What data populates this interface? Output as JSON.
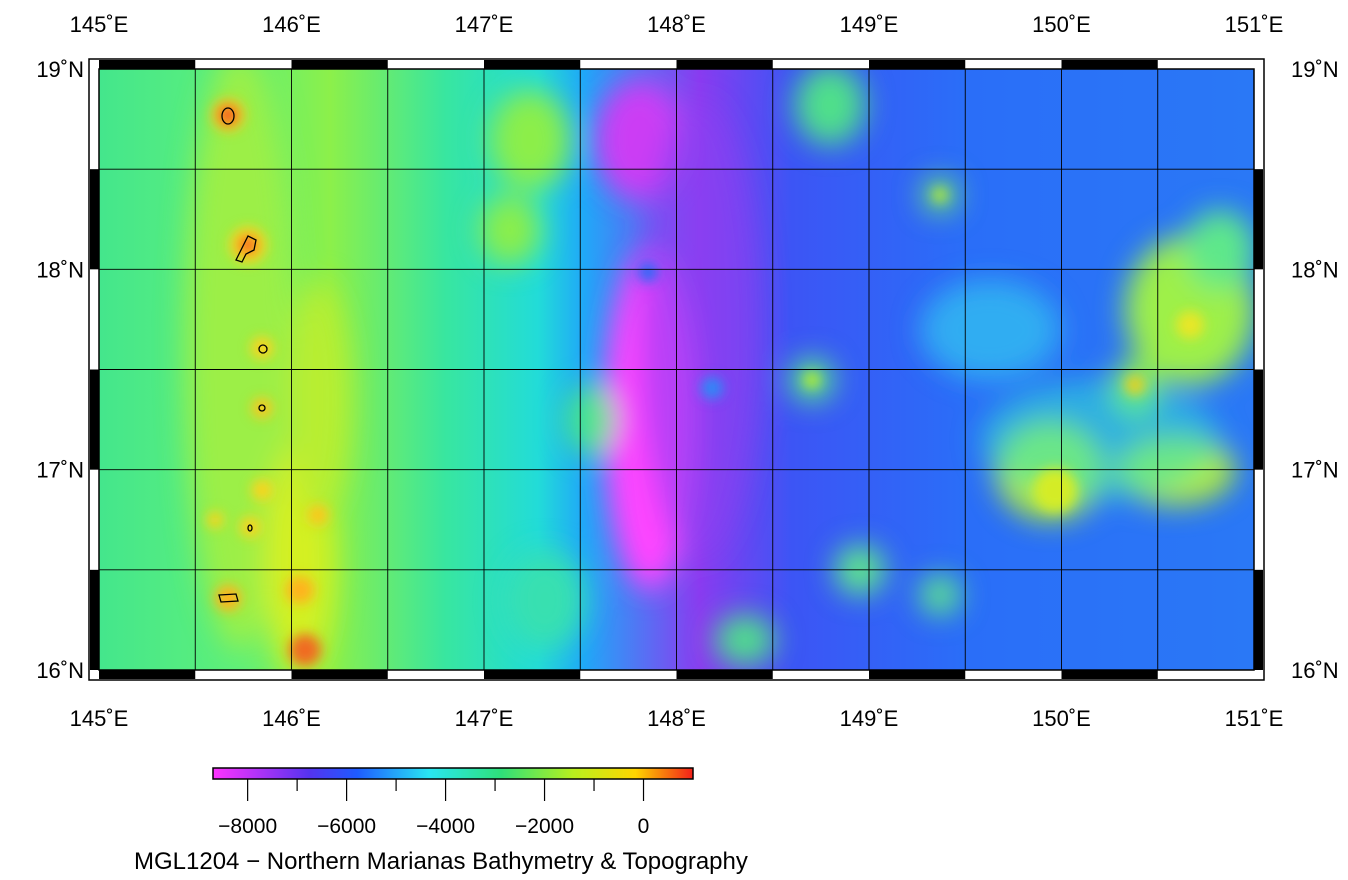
{
  "map": {
    "lon_range": [
      145,
      151
    ],
    "lat_range": [
      16,
      19
    ],
    "lon_labels": [
      "145˚E",
      "146˚E",
      "147˚E",
      "148˚E",
      "149˚E",
      "150˚E",
      "151˚E"
    ],
    "lat_labels": [
      "16˚N",
      "17˚N",
      "18˚N",
      "19˚N"
    ],
    "grid_step_degrees": 0.5,
    "colormap": [
      "#ff33ff",
      "#5533ee",
      "#1e5bff",
      "#29e6f2",
      "#2ee07a",
      "#b8f01e",
      "#ffd400",
      "#f2201a"
    ]
  },
  "colorbar": {
    "range": [
      -8700,
      1000
    ],
    "ticks": [
      -8000,
      -7000,
      -6000,
      -5000,
      -4000,
      -3000,
      -2000,
      -1000,
      0
    ],
    "tick_labels": [
      "−8000",
      "−6000",
      "−4000",
      "−2000",
      "0"
    ]
  },
  "caption": "MGL1204 − Northern Marianas Bathymetry & Topography"
}
